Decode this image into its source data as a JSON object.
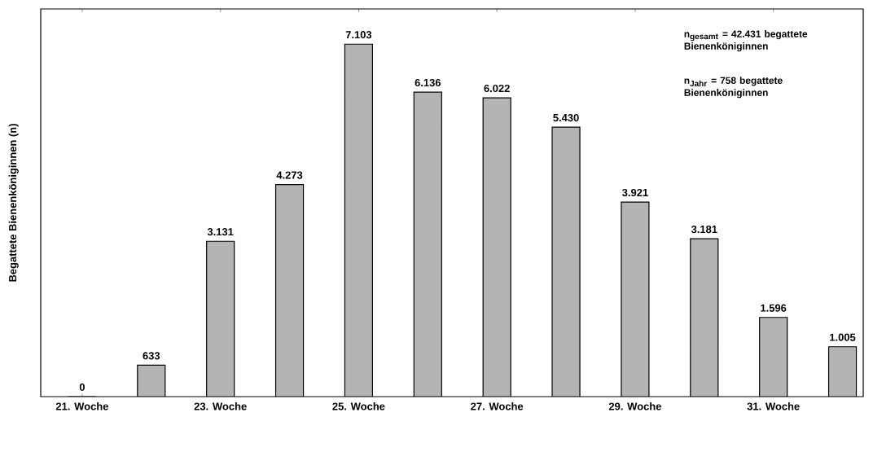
{
  "chart_data": {
    "type": "bar",
    "ylabel": "Begattete Bienenköniginnen (n)",
    "categories": [
      "21. Woche",
      null,
      "23. Woche",
      null,
      "25. Woche",
      null,
      "27. Woche",
      null,
      "29. Woche",
      null,
      "31. Woche",
      null
    ],
    "values": [
      0,
      633,
      3131,
      4273,
      7103,
      6136,
      6022,
      5430,
      3921,
      3181,
      1596,
      1005
    ],
    "value_labels": [
      "0",
      "633",
      "3.131",
      "4.273",
      "7.103",
      "6.136",
      "6.022",
      "5.430",
      "3.921",
      "3.181",
      "1.596",
      "1.005"
    ],
    "color": "#b4b4b4",
    "annotations": [
      "n$_{gesamt}$ = 42.431 begattete Bienenköniginnen",
      "n$_{Jahr}$ = 758  begattete Bienenköniginnen"
    ]
  }
}
